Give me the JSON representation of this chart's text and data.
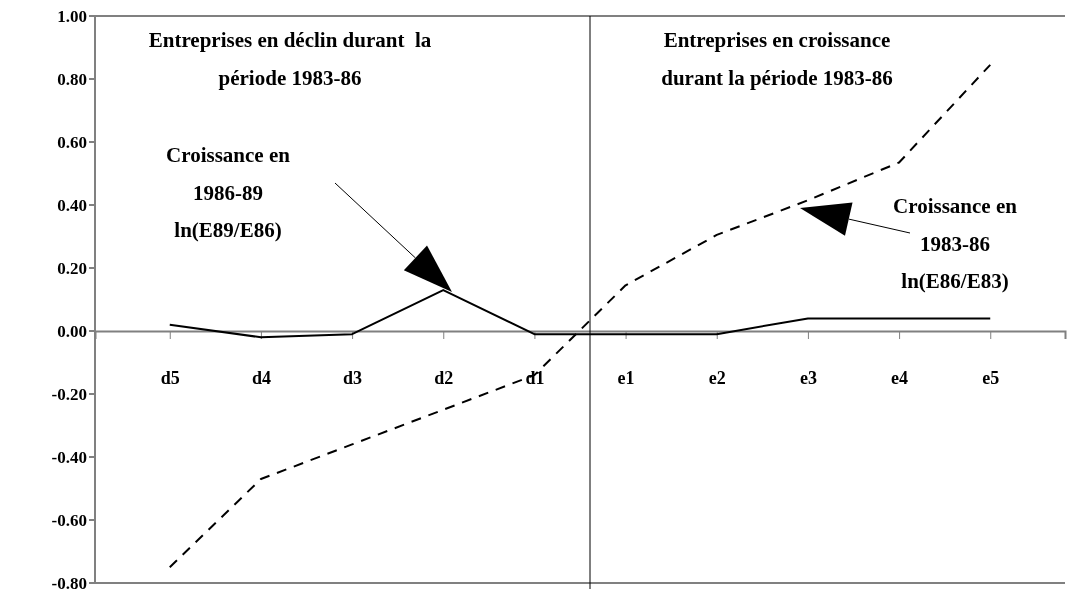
{
  "chart_data": {
    "type": "line",
    "categories": [
      "d5",
      "d4",
      "d3",
      "d2",
      "d1",
      "e1",
      "e2",
      "e3",
      "e4",
      "e5"
    ],
    "ylim": [
      -0.8,
      1.0
    ],
    "yticks": [
      {
        "value": -0.8,
        "label": "-0.80"
      },
      {
        "value": -0.6,
        "label": "-0.60"
      },
      {
        "value": -0.4,
        "label": "-0.40"
      },
      {
        "value": -0.2,
        "label": "-0.20"
      },
      {
        "value": 0,
        "label": "0.00"
      },
      {
        "value": 0.2,
        "label": "0.20"
      },
      {
        "value": 0.4,
        "label": "0.40"
      },
      {
        "value": 0.6,
        "label": "0.60"
      },
      {
        "value": 0.8,
        "label": "0.80"
      },
      {
        "value": 1.0,
        "label": "1.00"
      }
    ],
    "series": [
      {
        "color": "#000000",
        "line_style": "solid",
        "values": [
          0.02,
          -0.02,
          -0.01,
          0.13,
          -0.01,
          -0.01,
          -0.01,
          0.04,
          0.04,
          0.04
        ]
      },
      {
        "color": "#000000",
        "line_style": "dashed",
        "values": [
          -0.75,
          -0.47,
          -0.36,
          -0.25,
          -0.14,
          0.145,
          0.305,
          0.415,
          0.535,
          0.845
        ]
      }
    ],
    "annotations": [
      "Entreprises en déclin durant  la\npériode 1983-86",
      "Entreprises en croissance\ndurant la période 1983-86",
      "Croissance en\n1986-89\nln(E89/E86)",
      "Croissance en\n1983-86\nln(E86/E83)"
    ],
    "ref_lines": [
      {
        "axis": "x",
        "value": "e1",
        "color": "#000000"
      }
    ],
    "grid": false
  }
}
